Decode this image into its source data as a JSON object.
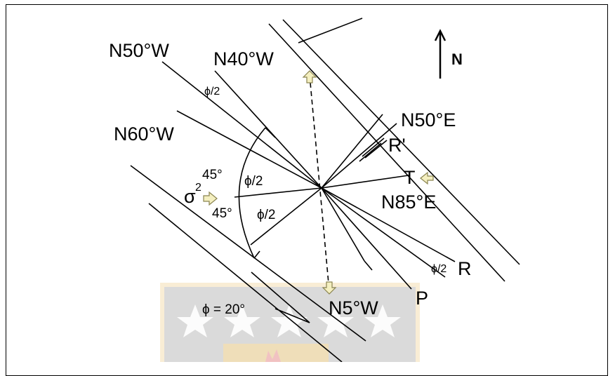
{
  "diagram": {
    "labels": {
      "north": "N",
      "n50w": "N50°W",
      "n40w": "N40°W",
      "n60w": "N60°W",
      "n50e": "N50°E",
      "r_prime": "R'",
      "t": "T",
      "n85e": "N85°E",
      "r": "R",
      "p": "P",
      "n5w": "N5°W",
      "sigma": "σ",
      "sigma_sup": "2",
      "phi_eq": "ϕ = 20°",
      "phi_half_1": "ϕ/2",
      "phi_half_2": "ϕ/2",
      "phi_half_3": "ϕ/2",
      "phi_half_4": "ϕ/2",
      "deg45_top": "45°",
      "deg45_bottom": "45°"
    },
    "colors": {
      "line": "#000000",
      "arrow_fill": "#f4efc0",
      "arrow_stroke": "#8a8450",
      "watermark_gold": "#f2d9a4",
      "watermark_blue": "#b7c2d8",
      "watermark_red": "#efb8b8"
    }
  }
}
